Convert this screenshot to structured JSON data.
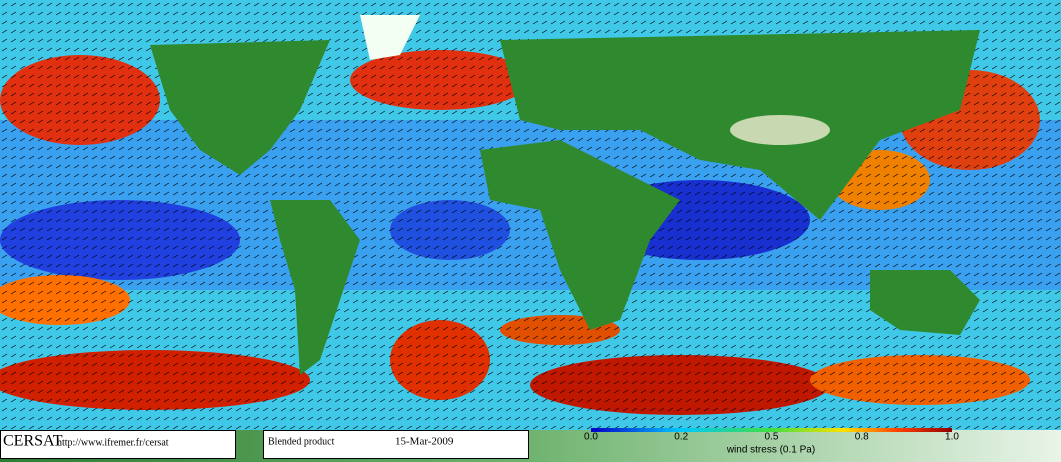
{
  "header": {
    "logo": "CERSAT",
    "url": "http://www.ifremer.fr/cersat",
    "product": "Blended product",
    "date": "15-Mar-2009"
  },
  "legend": {
    "title": "wind stress (0.1 Pa)",
    "ticks": [
      {
        "value": 0,
        "label": "0.0"
      },
      0.2,
      0.5,
      0.8,
      {
        "value": 1,
        "label": "1.0"
      }
    ]
  }
}
